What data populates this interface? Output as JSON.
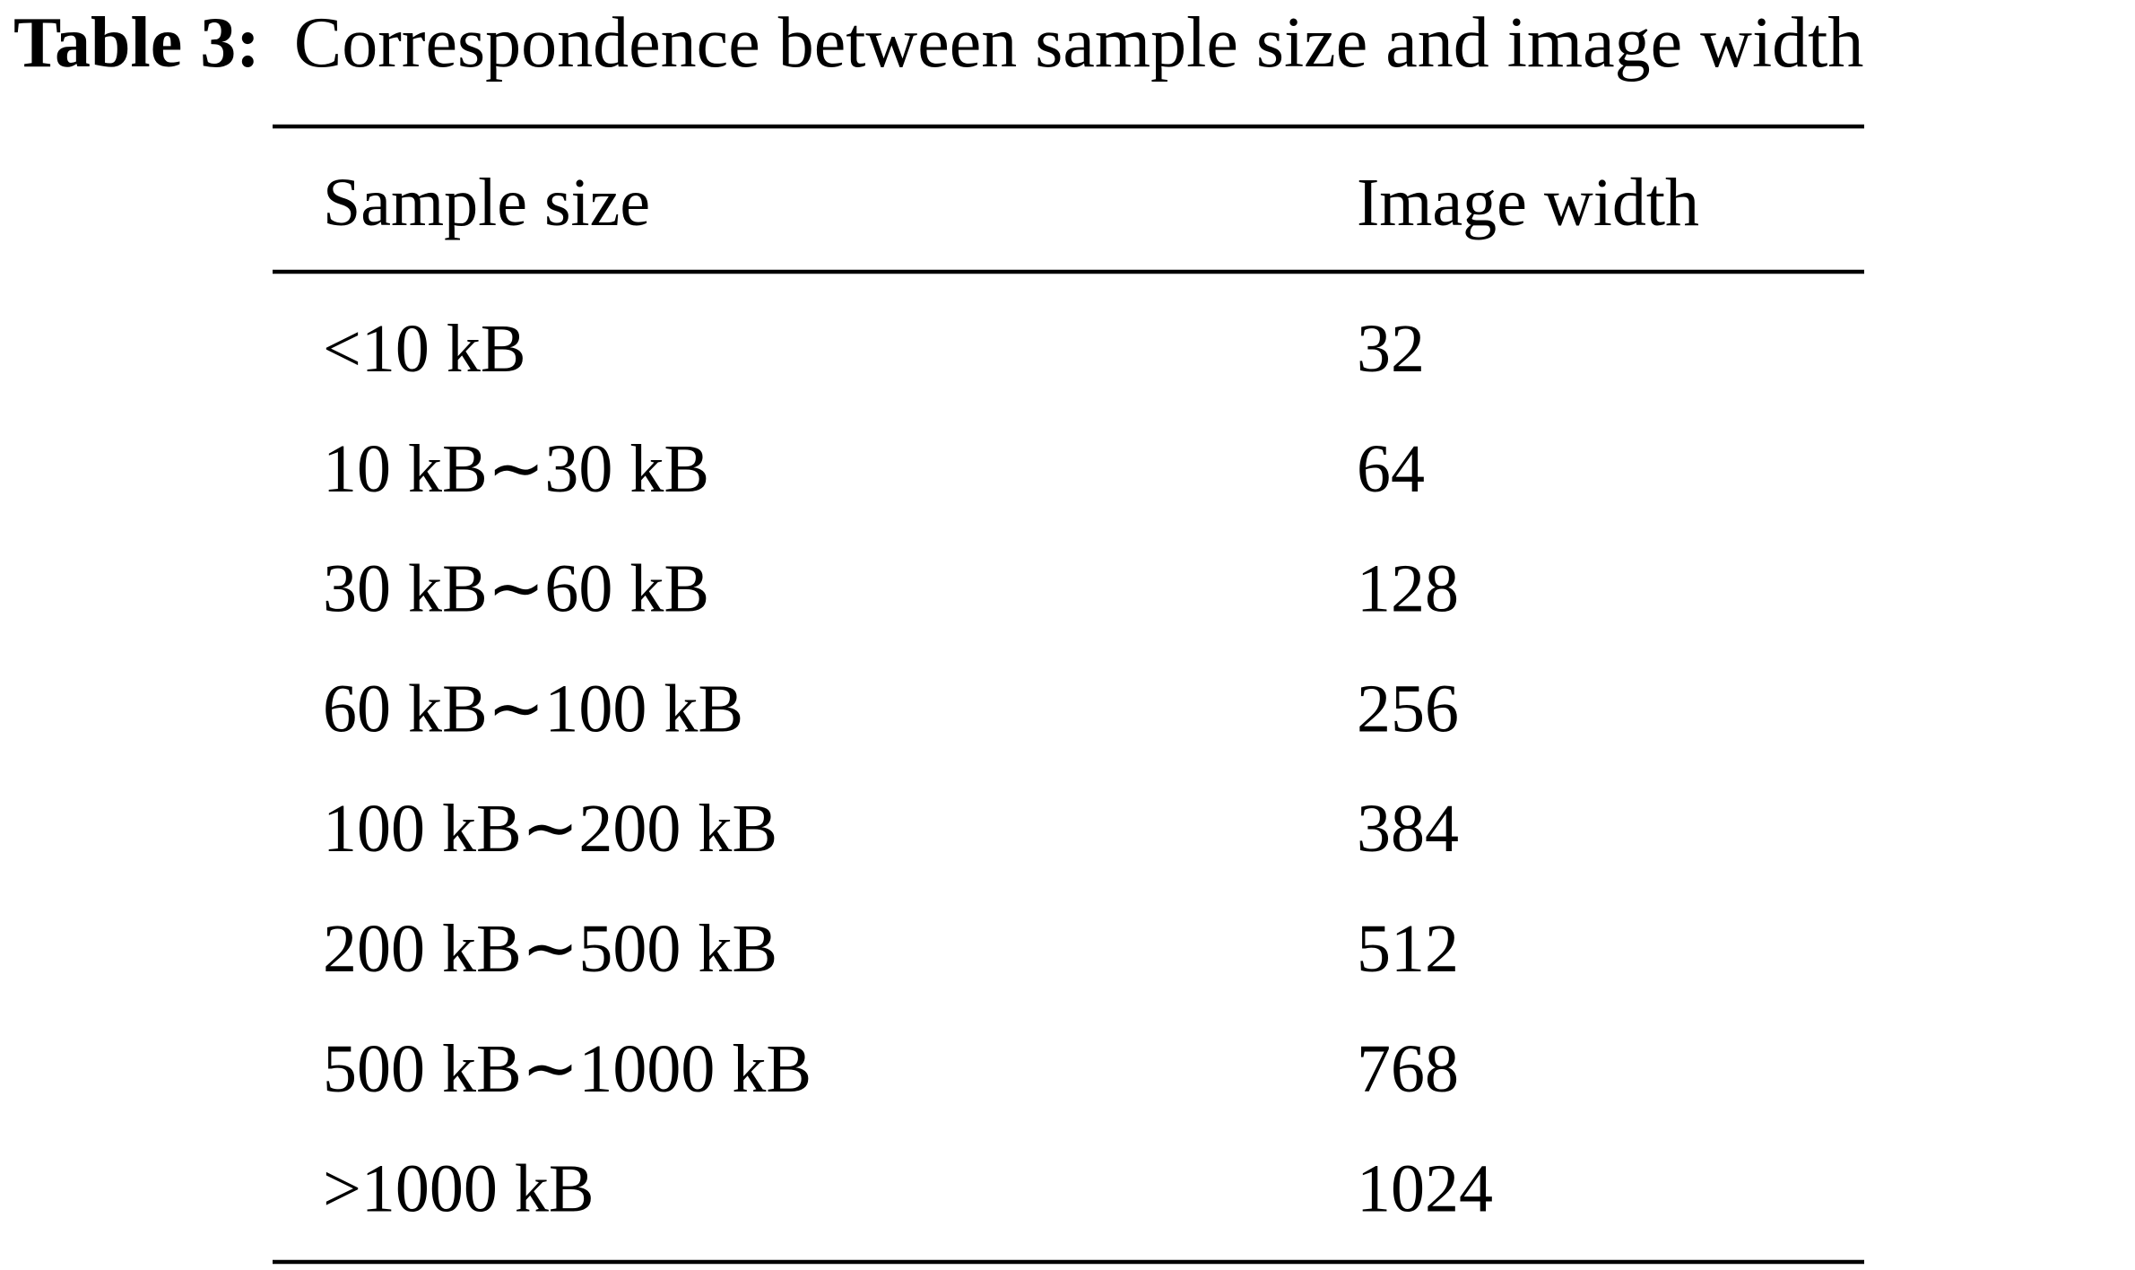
{
  "caption": {
    "label": "Table 3:",
    "text": "Correspondence between sample size and image width"
  },
  "table": {
    "header": [
      "Sample size",
      "Image width"
    ],
    "rows": [
      [
        "<10 kB",
        32
      ],
      [
        "10 kB∼30 kB",
        64
      ],
      [
        "30 kB∼60 kB",
        128
      ],
      [
        "60 kB∼100 kB",
        256
      ],
      [
        "100 kB∼200 kB",
        384
      ],
      [
        "200 kB∼500 kB",
        512
      ],
      [
        "500 kB∼1000 kB",
        768
      ],
      [
        ">1000 kB",
        1024
      ]
    ]
  }
}
